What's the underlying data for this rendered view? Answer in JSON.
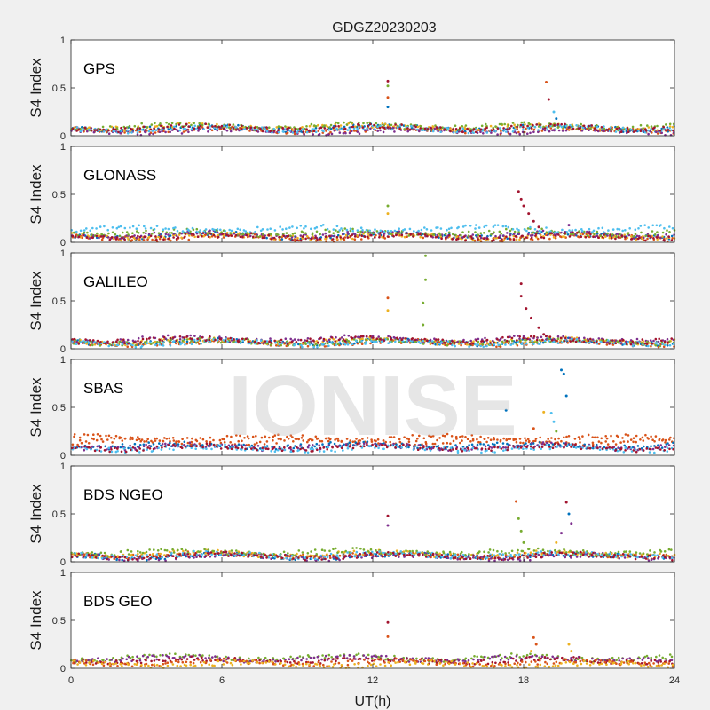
{
  "title": "GDGZ20230203",
  "xlabel": "UT(h)",
  "ylabel": "S4 Index",
  "watermark": "IONISE",
  "colors": [
    "#0072bd",
    "#d95319",
    "#edb120",
    "#7e2f8e",
    "#77ac30",
    "#4dbeee",
    "#a2142f"
  ],
  "chart_data": [
    {
      "type": "scatter",
      "panel_label": "GPS",
      "xlim": [
        0,
        24
      ],
      "ylim": [
        0,
        1
      ],
      "xticks": [
        0,
        6,
        12,
        18,
        24
      ],
      "yticks": [
        0,
        0.5,
        1
      ],
      "baseline_series": [
        {
          "color_index": 0,
          "level": 0.08
        },
        {
          "color_index": 1,
          "level": 0.06
        },
        {
          "color_index": 2,
          "level": 0.09
        },
        {
          "color_index": 3,
          "level": 0.05
        },
        {
          "color_index": 4,
          "level": 0.1
        },
        {
          "color_index": 5,
          "level": 0.07
        },
        {
          "color_index": 6,
          "level": 0.08
        }
      ],
      "spikes": [
        {
          "x": 12.6,
          "y": 0.57,
          "color_index": 6
        },
        {
          "x": 12.6,
          "y": 0.52,
          "color_index": 4
        },
        {
          "x": 12.6,
          "y": 0.4,
          "color_index": 1
        },
        {
          "x": 12.6,
          "y": 0.3,
          "color_index": 0
        },
        {
          "x": 18.9,
          "y": 0.56,
          "color_index": 1
        },
        {
          "x": 19.0,
          "y": 0.38,
          "color_index": 6
        },
        {
          "x": 19.2,
          "y": 0.25,
          "color_index": 5
        },
        {
          "x": 19.3,
          "y": 0.18,
          "color_index": 0
        }
      ]
    },
    {
      "type": "scatter",
      "panel_label": "GLONASS",
      "xlim": [
        0,
        24
      ],
      "ylim": [
        0,
        1
      ],
      "xticks": [
        0,
        6,
        12,
        18,
        24
      ],
      "yticks": [
        0,
        0.5,
        1
      ],
      "baseline_series": [
        {
          "color_index": 0,
          "level": 0.07
        },
        {
          "color_index": 1,
          "level": 0.05
        },
        {
          "color_index": 2,
          "level": 0.06
        },
        {
          "color_index": 3,
          "level": 0.08
        },
        {
          "color_index": 4,
          "level": 0.1
        },
        {
          "color_index": 5,
          "level": 0.14
        },
        {
          "color_index": 6,
          "level": 0.06
        }
      ],
      "spikes": [
        {
          "x": 12.6,
          "y": 0.38,
          "color_index": 4
        },
        {
          "x": 12.6,
          "y": 0.3,
          "color_index": 2
        },
        {
          "x": 17.8,
          "y": 0.53,
          "color_index": 6
        },
        {
          "x": 17.9,
          "y": 0.45,
          "color_index": 6
        },
        {
          "x": 18.0,
          "y": 0.38,
          "color_index": 6
        },
        {
          "x": 18.2,
          "y": 0.3,
          "color_index": 6
        },
        {
          "x": 18.4,
          "y": 0.22,
          "color_index": 6
        },
        {
          "x": 18.6,
          "y": 0.16,
          "color_index": 6
        },
        {
          "x": 19.8,
          "y": 0.18,
          "color_index": 3
        }
      ]
    },
    {
      "type": "scatter",
      "panel_label": "GALILEO",
      "xlim": [
        0,
        24
      ],
      "ylim": [
        0,
        1
      ],
      "xticks": [
        0,
        6,
        12,
        18,
        24
      ],
      "yticks": [
        0,
        0.5,
        1
      ],
      "baseline_series": [
        {
          "color_index": 0,
          "level": 0.07
        },
        {
          "color_index": 1,
          "level": 0.06
        },
        {
          "color_index": 2,
          "level": 0.08
        },
        {
          "color_index": 3,
          "level": 0.1
        },
        {
          "color_index": 4,
          "level": 0.07
        },
        {
          "color_index": 5,
          "level": 0.06
        },
        {
          "color_index": 6,
          "level": 0.09
        }
      ],
      "spikes": [
        {
          "x": 12.6,
          "y": 0.53,
          "color_index": 1
        },
        {
          "x": 12.6,
          "y": 0.4,
          "color_index": 2
        },
        {
          "x": 14.1,
          "y": 0.97,
          "color_index": 4
        },
        {
          "x": 14.1,
          "y": 0.72,
          "color_index": 4
        },
        {
          "x": 14.0,
          "y": 0.48,
          "color_index": 4
        },
        {
          "x": 14.0,
          "y": 0.25,
          "color_index": 4
        },
        {
          "x": 17.9,
          "y": 0.68,
          "color_index": 6
        },
        {
          "x": 17.9,
          "y": 0.55,
          "color_index": 6
        },
        {
          "x": 18.1,
          "y": 0.42,
          "color_index": 6
        },
        {
          "x": 18.3,
          "y": 0.32,
          "color_index": 6
        },
        {
          "x": 18.6,
          "y": 0.22,
          "color_index": 6
        },
        {
          "x": 18.8,
          "y": 0.15,
          "color_index": 6
        }
      ]
    },
    {
      "type": "scatter",
      "panel_label": "SBAS",
      "xlim": [
        0,
        24
      ],
      "ylim": [
        0,
        1
      ],
      "xticks": [
        0,
        6,
        12,
        18,
        24
      ],
      "yticks": [
        0,
        0.5,
        1
      ],
      "baseline_series": [
        {
          "color_index": 1,
          "level": 0.18
        },
        {
          "color_index": 1,
          "level": 0.14
        },
        {
          "color_index": 0,
          "level": 0.1
        },
        {
          "color_index": 3,
          "level": 0.09
        },
        {
          "color_index": 5,
          "level": 0.07
        },
        {
          "color_index": 6,
          "level": 0.08
        }
      ],
      "spikes": [
        {
          "x": 17.3,
          "y": 0.47,
          "color_index": 0
        },
        {
          "x": 19.5,
          "y": 0.89,
          "color_index": 0
        },
        {
          "x": 19.6,
          "y": 0.85,
          "color_index": 0
        },
        {
          "x": 19.7,
          "y": 0.62,
          "color_index": 0
        },
        {
          "x": 18.8,
          "y": 0.45,
          "color_index": 2
        },
        {
          "x": 19.1,
          "y": 0.44,
          "color_index": 5
        },
        {
          "x": 19.2,
          "y": 0.35,
          "color_index": 5
        },
        {
          "x": 19.3,
          "y": 0.25,
          "color_index": 4
        },
        {
          "x": 18.4,
          "y": 0.28,
          "color_index": 1
        }
      ]
    },
    {
      "type": "scatter",
      "panel_label": "BDS NGEO",
      "xlim": [
        0,
        24
      ],
      "ylim": [
        0,
        1
      ],
      "xticks": [
        0,
        6,
        12,
        18,
        24
      ],
      "yticks": [
        0,
        0.5,
        1
      ],
      "baseline_series": [
        {
          "color_index": 0,
          "level": 0.06
        },
        {
          "color_index": 1,
          "level": 0.07
        },
        {
          "color_index": 2,
          "level": 0.08
        },
        {
          "color_index": 3,
          "level": 0.05
        },
        {
          "color_index": 4,
          "level": 0.1
        },
        {
          "color_index": 5,
          "level": 0.07
        },
        {
          "color_index": 6,
          "level": 0.06
        }
      ],
      "spikes": [
        {
          "x": 12.6,
          "y": 0.48,
          "color_index": 6
        },
        {
          "x": 12.6,
          "y": 0.38,
          "color_index": 3
        },
        {
          "x": 17.7,
          "y": 0.63,
          "color_index": 1
        },
        {
          "x": 17.8,
          "y": 0.45,
          "color_index": 4
        },
        {
          "x": 17.9,
          "y": 0.32,
          "color_index": 4
        },
        {
          "x": 18.0,
          "y": 0.2,
          "color_index": 4
        },
        {
          "x": 19.7,
          "y": 0.62,
          "color_index": 6
        },
        {
          "x": 19.8,
          "y": 0.5,
          "color_index": 0
        },
        {
          "x": 19.9,
          "y": 0.4,
          "color_index": 3
        },
        {
          "x": 19.5,
          "y": 0.3,
          "color_index": 3
        },
        {
          "x": 19.3,
          "y": 0.2,
          "color_index": 2
        }
      ]
    },
    {
      "type": "scatter",
      "panel_label": "BDS GEO",
      "xlim": [
        0,
        24
      ],
      "ylim": [
        0,
        1
      ],
      "xticks": [
        0,
        6,
        12,
        18,
        24
      ],
      "yticks": [
        0,
        0.5,
        1
      ],
      "baseline_series": [
        {
          "color_index": 4,
          "level": 0.11
        },
        {
          "color_index": 3,
          "level": 0.1
        },
        {
          "color_index": 6,
          "level": 0.08
        },
        {
          "color_index": 1,
          "level": 0.06
        },
        {
          "color_index": 2,
          "level": 0.04
        }
      ],
      "spikes": [
        {
          "x": 12.6,
          "y": 0.48,
          "color_index": 6
        },
        {
          "x": 12.6,
          "y": 0.33,
          "color_index": 1
        },
        {
          "x": 18.4,
          "y": 0.32,
          "color_index": 1
        },
        {
          "x": 18.5,
          "y": 0.25,
          "color_index": 1
        },
        {
          "x": 18.3,
          "y": 0.18,
          "color_index": 2
        },
        {
          "x": 19.8,
          "y": 0.25,
          "color_index": 2
        },
        {
          "x": 19.9,
          "y": 0.18,
          "color_index": 2
        }
      ]
    }
  ]
}
